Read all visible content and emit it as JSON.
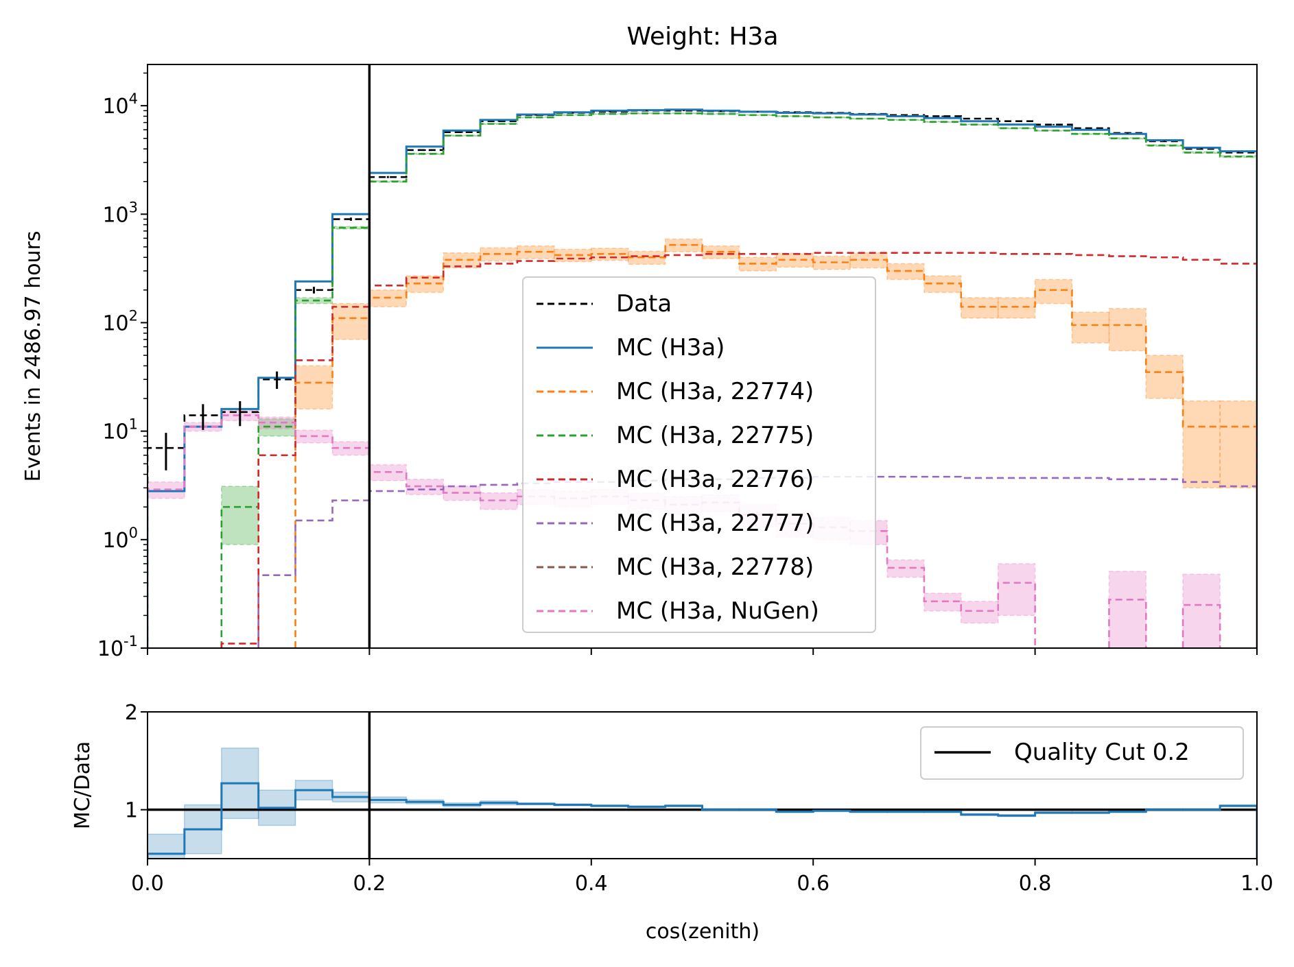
{
  "chart_data": {
    "type": "histogram",
    "title": "Weight: H3a",
    "xlabel": "cos(zenith)",
    "ylabel": "Events in 2486.97 hours",
    "ratio_ylabel": "MC/Data",
    "yscale": "log",
    "xlim": [
      0.0,
      1.0
    ],
    "ylim": [
      0.1,
      24000
    ],
    "ratio_ylim": [
      0.5,
      2.0
    ],
    "quality_cut": 0.2,
    "quality_cut_label": "Quality Cut 0.2",
    "grid": false,
    "legend_position": "center",
    "ratio_legend_position": "upper right",
    "x_ticks": [
      "0.0",
      "0.2",
      "0.4",
      "0.6",
      "0.8",
      "1.0"
    ],
    "ratio_y_ticks": [
      "1",
      "2"
    ],
    "bin_edges": [
      0.0,
      0.0333,
      0.0667,
      0.1,
      0.1333,
      0.1667,
      0.2,
      0.2333,
      0.2667,
      0.3,
      0.3333,
      0.3667,
      0.4,
      0.4333,
      0.4667,
      0.5,
      0.5333,
      0.5667,
      0.6,
      0.6333,
      0.6667,
      0.7,
      0.7333,
      0.7667,
      0.8,
      0.8333,
      0.8667,
      0.9,
      0.9333,
      0.9667,
      1.0
    ],
    "series": [
      {
        "name": "Data",
        "color": "#000000",
        "dash": true,
        "values": [
          7,
          14,
          15,
          30,
          200,
          900,
          2200,
          3900,
          5700,
          7200,
          8200,
          8600,
          8800,
          9000,
          9000,
          8900,
          8800,
          8700,
          8600,
          8400,
          8200,
          8000,
          7600,
          7200,
          6700,
          6200,
          5600,
          4700,
          4000,
          3700
        ]
      },
      {
        "name": "MC (H3a)",
        "color": "#1f77b4",
        "dash": false,
        "values": [
          2.8,
          11,
          16,
          31,
          240,
          1000,
          2400,
          4200,
          5900,
          7400,
          8300,
          8700,
          9000,
          9100,
          9200,
          9000,
          8800,
          8600,
          8500,
          8300,
          8000,
          7700,
          7200,
          6700,
          6400,
          6000,
          5500,
          4800,
          4100,
          3800
        ]
      },
      {
        "name": "MC (H3a, 22774)",
        "color": "#ff7f0e",
        "dash": true,
        "values": [
          null,
          null,
          null,
          null,
          28,
          110,
          170,
          230,
          380,
          430,
          450,
          420,
          430,
          400,
          520,
          450,
          350,
          380,
          360,
          380,
          300,
          230,
          140,
          140,
          200,
          95,
          95,
          35,
          11,
          11
        ],
        "errors": [
          0,
          0,
          0,
          0,
          12,
          40,
          30,
          40,
          60,
          60,
          60,
          55,
          55,
          55,
          70,
          60,
          50,
          55,
          50,
          60,
          50,
          40,
          30,
          30,
          50,
          30,
          40,
          15,
          8,
          8
        ]
      },
      {
        "name": "MC (H3a, 22775)",
        "color": "#2ca02c",
        "dash": true,
        "values": [
          null,
          null,
          2.0,
          11,
          160,
          750,
          2000,
          3600,
          5300,
          6800,
          7800,
          8200,
          8400,
          8500,
          8500,
          8400,
          8200,
          8000,
          7800,
          7600,
          7400,
          7100,
          6700,
          6200,
          5900,
          5500,
          5000,
          4300,
          3700,
          3400
        ],
        "errors": [
          0,
          0,
          1.1,
          2,
          10,
          20,
          30,
          40,
          50,
          60,
          60,
          60,
          60,
          60,
          60,
          60,
          60,
          60,
          60,
          60,
          60,
          60,
          60,
          60,
          60,
          60,
          60,
          60,
          60,
          60
        ]
      },
      {
        "name": "MC (H3a, 22776)",
        "color": "#d62728",
        "dash": true,
        "values": [
          null,
          null,
          0.11,
          6,
          45,
          140,
          220,
          260,
          330,
          350,
          370,
          390,
          400,
          410,
          420,
          430,
          430,
          430,
          440,
          440,
          440,
          440,
          440,
          430,
          430,
          420,
          410,
          400,
          380,
          350
        ]
      },
      {
        "name": "MC (H3a, 22777)",
        "color": "#9467bd",
        "dash": true,
        "values": [
          null,
          null,
          null,
          0.47,
          1.5,
          2.3,
          2.8,
          2.9,
          3.1,
          3.2,
          3.3,
          3.4,
          3.4,
          3.5,
          3.6,
          3.6,
          3.7,
          3.7,
          3.8,
          3.8,
          3.8,
          3.8,
          3.7,
          3.7,
          3.7,
          3.7,
          3.6,
          3.6,
          3.4,
          3.1
        ]
      },
      {
        "name": "MC (H3a, 22778)",
        "color": "#8c564b",
        "dash": true,
        "values": []
      },
      {
        "name": "MC (H3a, NuGen)",
        "color": "#e377c2",
        "dash": true,
        "values": [
          2.9,
          11,
          14,
          12,
          9,
          7,
          4.2,
          3.1,
          2.7,
          2.3,
          2.5,
          2.4,
          2.5,
          2.3,
          2.1,
          2.2,
          1.7,
          1.4,
          1.3,
          1.2,
          0.55,
          0.27,
          0.22,
          0.4,
          null,
          null,
          0.28,
          null,
          0.25,
          null
        ],
        "errors": [
          0.5,
          1,
          1.5,
          1.5,
          1.2,
          1,
          0.7,
          0.5,
          0.4,
          0.4,
          0.4,
          0.4,
          0.4,
          0.4,
          0.4,
          0.4,
          0.4,
          0.35,
          0.3,
          0.3,
          0.1,
          0.05,
          0.05,
          0.2,
          0,
          0,
          0.23,
          0,
          0.23,
          0
        ]
      }
    ],
    "ratio": {
      "name": "MC (H3a)",
      "color": "#1f77b4",
      "values": [
        0.55,
        0.8,
        1.27,
        1.02,
        1.2,
        1.13,
        1.1,
        1.08,
        1.05,
        1.07,
        1.06,
        1.05,
        1.04,
        1.03,
        1.04,
        1.0,
        1.0,
        0.98,
        0.99,
        0.98,
        0.98,
        0.98,
        0.95,
        0.94,
        0.97,
        0.97,
        0.98,
        1.0,
        1.0,
        1.04
      ],
      "errors": [
        0.2,
        0.25,
        0.36,
        0.18,
        0.1,
        0.05,
        0.03,
        0.02,
        0.02,
        0.02,
        0.01,
        0.01,
        0.01,
        0.01,
        0.01,
        0.01,
        0.01,
        0.01,
        0.01,
        0.01,
        0.01,
        0.01,
        0.01,
        0.01,
        0.01,
        0.01,
        0.01,
        0.01,
        0.01,
        0.01
      ]
    }
  }
}
